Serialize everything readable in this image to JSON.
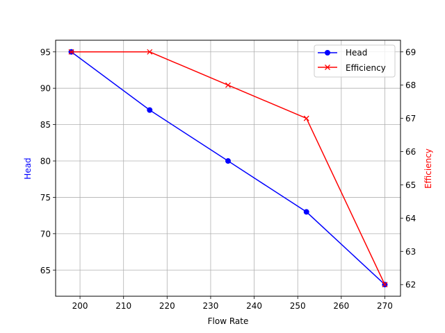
{
  "chart_data": {
    "type": "line",
    "title": "",
    "xlabel": "Flow Rate",
    "ylabel": "Head",
    "ylabel_right": "Efficiency",
    "x": [
      198,
      216,
      234,
      252,
      270
    ],
    "series": [
      {
        "name": "Head",
        "axis": "left",
        "color": "#0000ff",
        "marker": "o",
        "values": [
          95,
          87,
          80,
          73,
          63
        ]
      },
      {
        "name": "Efficiency",
        "axis": "right",
        "color": "#ff0000",
        "marker": "x",
        "values": [
          69,
          69,
          68,
          67,
          62
        ]
      }
    ],
    "xticks": [
      200,
      210,
      220,
      230,
      240,
      250,
      260,
      270
    ],
    "yticks_left": [
      65,
      70,
      75,
      80,
      85,
      90,
      95
    ],
    "yticks_right": [
      62,
      63,
      64,
      65,
      66,
      67,
      68,
      69
    ],
    "xlim": [
      194.4,
      273.6
    ],
    "ylim_left": [
      61.4,
      96.6
    ],
    "ylim_right": [
      61.65,
      69.35
    ],
    "grid": true,
    "legend_position": "upper right",
    "axis_label_colors": {
      "left": "#0000ff",
      "right": "#ff0000",
      "x": "#000000"
    }
  },
  "legend": {
    "items": [
      {
        "label": "Head",
        "color": "#0000ff"
      },
      {
        "label": "Efficiency",
        "color": "#ff0000"
      }
    ]
  }
}
